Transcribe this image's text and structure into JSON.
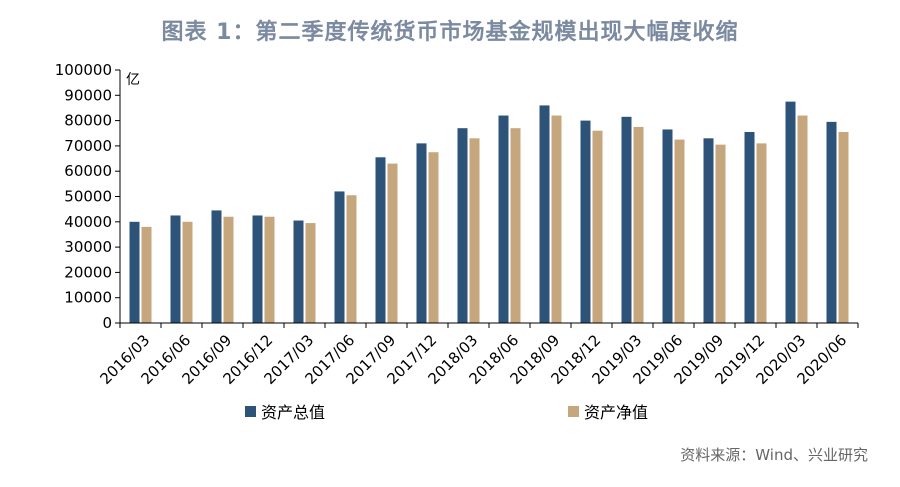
{
  "title": "图表 1：第二季度传统货币市场基金规模出现大幅度收缩",
  "source": "资料来源：Wind、兴业研究",
  "colors": {
    "total": "#2d5378",
    "net": "#c6a67c",
    "axis": "#000000"
  },
  "chart_data": {
    "type": "bar",
    "title": "图表 1：第二季度传统货币市场基金规模出现大幅度收缩",
    "ylabel": "亿",
    "ylim": [
      0,
      100000
    ],
    "yticks": [
      0,
      10000,
      20000,
      30000,
      40000,
      50000,
      60000,
      70000,
      80000,
      90000,
      100000
    ],
    "grid": false,
    "legend_position": "bottom",
    "categories": [
      "2016/03",
      "2016/06",
      "2016/09",
      "2016/12",
      "2017/03",
      "2017/06",
      "2017/09",
      "2017/12",
      "2018/03",
      "2018/06",
      "2018/09",
      "2018/12",
      "2019/03",
      "2019/06",
      "2019/09",
      "2019/12",
      "2020/03",
      "2020/06"
    ],
    "series": [
      {
        "name": "资产总值",
        "color": "#2d5378",
        "values": [
          40000,
          42500,
          44500,
          42500,
          40500,
          52000,
          65500,
          71000,
          77000,
          82000,
          86000,
          80000,
          81500,
          76500,
          73000,
          75500,
          87500,
          79500
        ]
      },
      {
        "name": "资产净值",
        "color": "#c6a67c",
        "values": [
          38000,
          40000,
          42000,
          42000,
          39500,
          50500,
          63000,
          67500,
          73000,
          77000,
          82000,
          76000,
          77500,
          72500,
          70500,
          71000,
          82000,
          75500
        ]
      }
    ]
  }
}
